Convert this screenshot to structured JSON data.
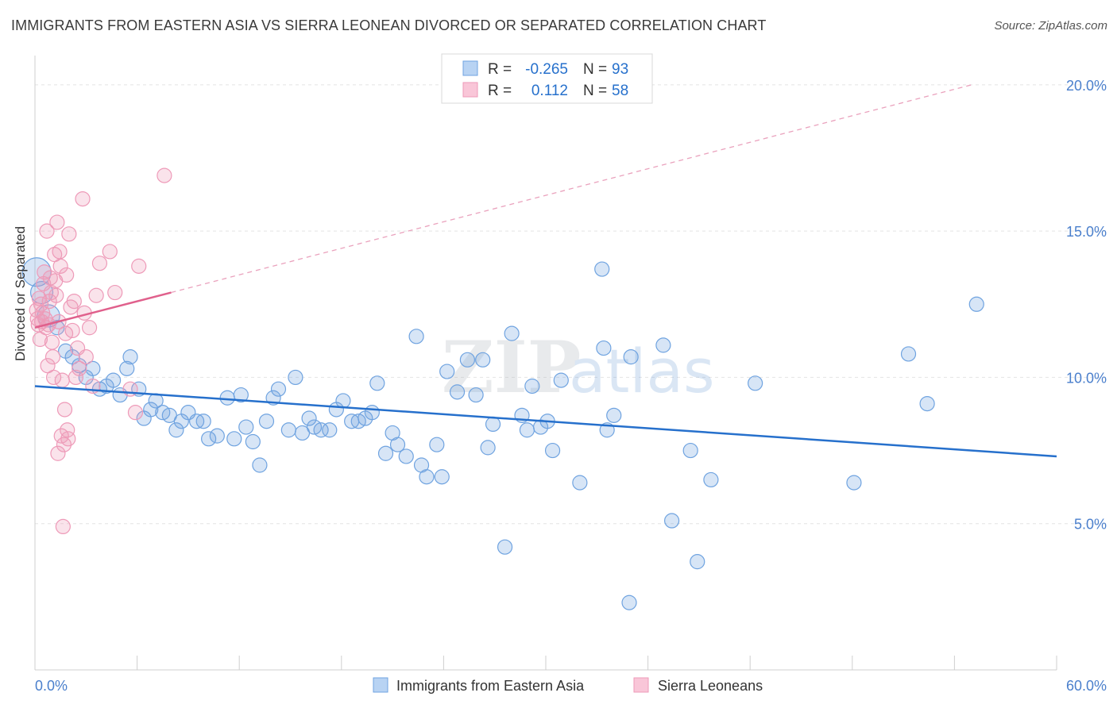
{
  "title": "IMMIGRANTS FROM EASTERN ASIA VS SIERRA LEONEAN DIVORCED OR SEPARATED CORRELATION CHART",
  "source": "Source: ZipAtlas.com",
  "watermark": {
    "zip": "ZIP",
    "atlas": "atlas"
  },
  "chart_data": {
    "type": "scatter",
    "title": "IMMIGRANTS FROM EASTERN ASIA VS SIERRA LEONEAN DIVORCED OR SEPARATED CORRELATION CHART",
    "xlabel": "",
    "ylabel": "Divorced or Separated",
    "xlim": [
      0,
      60
    ],
    "ylim": [
      0,
      21
    ],
    "x_tick_labels": [
      "0.0%",
      "60.0%"
    ],
    "y_ticks": [
      5,
      10,
      15,
      20
    ],
    "y_tick_labels": [
      "5.0%",
      "10.0%",
      "15.0%",
      "20.0%"
    ],
    "legend_stats": [
      {
        "r_label": "R =",
        "r_value": "-0.265",
        "n_label": "N =",
        "n_value": "93"
      },
      {
        "r_label": "R =",
        "r_value": "0.112",
        "n_label": "N =",
        "n_value": "58"
      }
    ],
    "series": [
      {
        "name": "Immigrants from Eastern Asia",
        "color": "#6fa3e0",
        "line_color": "#2670cc",
        "trend": {
          "x": [
            0,
            60
          ],
          "y": [
            9.7,
            7.3
          ]
        },
        "points": [
          [
            0.1,
            13.6
          ],
          [
            0.4,
            12.9
          ],
          [
            0.8,
            12.1
          ],
          [
            1.3,
            11.7
          ],
          [
            1.8,
            10.9
          ],
          [
            2.2,
            10.7
          ],
          [
            2.6,
            10.4
          ],
          [
            3.0,
            10.0
          ],
          [
            3.4,
            10.3
          ],
          [
            3.8,
            9.6
          ],
          [
            4.2,
            9.7
          ],
          [
            4.6,
            9.9
          ],
          [
            5.0,
            9.4
          ],
          [
            5.4,
            10.3
          ],
          [
            5.6,
            10.7
          ],
          [
            6.1,
            9.6
          ],
          [
            6.4,
            8.6
          ],
          [
            6.8,
            8.9
          ],
          [
            7.1,
            9.2
          ],
          [
            7.5,
            8.8
          ],
          [
            7.9,
            8.7
          ],
          [
            8.3,
            8.2
          ],
          [
            8.6,
            8.5
          ],
          [
            9.0,
            8.8
          ],
          [
            9.5,
            8.5
          ],
          [
            9.9,
            8.5
          ],
          [
            10.2,
            7.9
          ],
          [
            10.7,
            8.0
          ],
          [
            11.3,
            9.3
          ],
          [
            11.7,
            7.9
          ],
          [
            12.1,
            9.4
          ],
          [
            12.4,
            8.3
          ],
          [
            12.8,
            7.8
          ],
          [
            13.2,
            7.0
          ],
          [
            13.6,
            8.5
          ],
          [
            14.0,
            9.3
          ],
          [
            14.3,
            9.6
          ],
          [
            14.9,
            8.2
          ],
          [
            15.3,
            10.0
          ],
          [
            15.7,
            8.1
          ],
          [
            16.1,
            8.6
          ],
          [
            16.4,
            8.3
          ],
          [
            16.8,
            8.2
          ],
          [
            17.3,
            8.2
          ],
          [
            17.7,
            8.9
          ],
          [
            18.1,
            9.2
          ],
          [
            18.6,
            8.5
          ],
          [
            19.0,
            8.5
          ],
          [
            19.4,
            8.6
          ],
          [
            19.8,
            8.8
          ],
          [
            20.1,
            9.8
          ],
          [
            20.6,
            7.4
          ],
          [
            21.0,
            8.1
          ],
          [
            21.3,
            7.7
          ],
          [
            21.8,
            7.3
          ],
          [
            22.4,
            11.4
          ],
          [
            22.7,
            7.0
          ],
          [
            23.0,
            6.6
          ],
          [
            23.6,
            7.7
          ],
          [
            23.9,
            6.6
          ],
          [
            24.2,
            10.2
          ],
          [
            24.8,
            9.5
          ],
          [
            25.4,
            10.6
          ],
          [
            25.9,
            9.4
          ],
          [
            26.3,
            10.6
          ],
          [
            26.6,
            7.6
          ],
          [
            26.9,
            8.4
          ],
          [
            27.6,
            4.2
          ],
          [
            28.0,
            11.5
          ],
          [
            28.6,
            8.7
          ],
          [
            28.9,
            8.2
          ],
          [
            29.2,
            9.7
          ],
          [
            29.7,
            8.3
          ],
          [
            30.1,
            8.5
          ],
          [
            30.4,
            7.5
          ],
          [
            30.9,
            9.9
          ],
          [
            32.0,
            6.4
          ],
          [
            33.3,
            13.7
          ],
          [
            33.4,
            11.0
          ],
          [
            33.6,
            8.2
          ],
          [
            34.0,
            8.7
          ],
          [
            34.9,
            2.3
          ],
          [
            35.0,
            10.7
          ],
          [
            36.9,
            11.1
          ],
          [
            37.4,
            5.1
          ],
          [
            38.5,
            7.5
          ],
          [
            38.9,
            3.7
          ],
          [
            39.7,
            6.5
          ],
          [
            42.3,
            9.8
          ],
          [
            48.1,
            6.4
          ],
          [
            51.3,
            10.8
          ],
          [
            52.4,
            9.1
          ],
          [
            55.3,
            12.5
          ]
        ]
      },
      {
        "name": "Sierra Leoneans",
        "color": "#ee9ab8",
        "line_color": "#e0608c",
        "trend": {
          "x": [
            0,
            8
          ],
          "y": [
            11.7,
            12.9
          ],
          "dashed_x": [
            8,
            55
          ],
          "dashed_y": [
            12.9,
            20.0
          ]
        },
        "points": [
          [
            0.1,
            12.3
          ],
          [
            0.15,
            12.0
          ],
          [
            0.2,
            11.8
          ],
          [
            0.25,
            12.7
          ],
          [
            0.3,
            11.3
          ],
          [
            0.35,
            12.5
          ],
          [
            0.4,
            11.9
          ],
          [
            0.5,
            13.2
          ],
          [
            0.55,
            13.6
          ],
          [
            0.6,
            12.0
          ],
          [
            0.65,
            11.7
          ],
          [
            0.7,
            15.0
          ],
          [
            0.75,
            10.4
          ],
          [
            0.8,
            11.8
          ],
          [
            0.85,
            12.6
          ],
          [
            0.9,
            13.4
          ],
          [
            0.95,
            12.9
          ],
          [
            1.0,
            11.2
          ],
          [
            1.05,
            10.7
          ],
          [
            1.1,
            10.0
          ],
          [
            1.15,
            14.2
          ],
          [
            1.2,
            13.3
          ],
          [
            1.25,
            12.8
          ],
          [
            1.3,
            15.3
          ],
          [
            1.35,
            7.4
          ],
          [
            1.4,
            11.9
          ],
          [
            1.45,
            14.3
          ],
          [
            1.5,
            13.8
          ],
          [
            1.55,
            8.0
          ],
          [
            1.6,
            9.9
          ],
          [
            1.65,
            4.9
          ],
          [
            1.7,
            7.7
          ],
          [
            1.75,
            8.9
          ],
          [
            1.8,
            11.5
          ],
          [
            1.85,
            13.5
          ],
          [
            1.9,
            8.2
          ],
          [
            1.95,
            7.9
          ],
          [
            2.0,
            14.9
          ],
          [
            2.1,
            12.4
          ],
          [
            2.2,
            11.6
          ],
          [
            2.3,
            12.6
          ],
          [
            2.4,
            10.0
          ],
          [
            2.5,
            11.0
          ],
          [
            2.6,
            10.3
          ],
          [
            2.8,
            16.1
          ],
          [
            2.9,
            12.2
          ],
          [
            3.0,
            10.7
          ],
          [
            3.2,
            11.7
          ],
          [
            3.4,
            9.7
          ],
          [
            3.6,
            12.8
          ],
          [
            3.8,
            13.9
          ],
          [
            4.4,
            14.3
          ],
          [
            4.7,
            12.9
          ],
          [
            5.6,
            9.6
          ],
          [
            5.9,
            8.8
          ],
          [
            6.1,
            13.8
          ],
          [
            7.6,
            16.9
          ],
          [
            0.45,
            12.2
          ]
        ]
      }
    ]
  },
  "legend": {
    "items": [
      "Immigrants from Eastern Asia",
      "Sierra Leoneans"
    ]
  }
}
